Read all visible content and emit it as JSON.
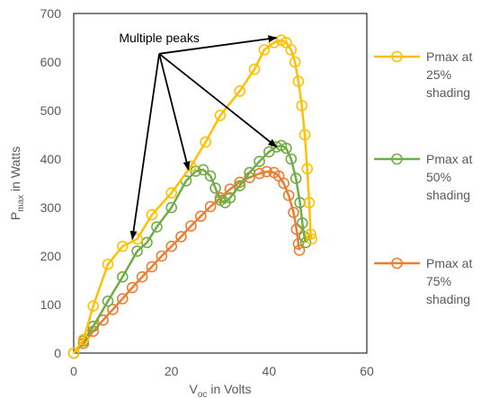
{
  "chart_data": {
    "type": "scatter",
    "xlim": [
      0,
      60
    ],
    "ylim": [
      0,
      700
    ],
    "xticks": [
      0,
      20,
      40,
      60
    ],
    "yticks": [
      0,
      100,
      200,
      300,
      400,
      500,
      600,
      700
    ],
    "xlabel": {
      "main": "V",
      "sub": "oc",
      "rest": " in Volts"
    },
    "ylabel": {
      "main": "P",
      "sub": "max",
      "rest": " in Watts"
    },
    "grid": false,
    "legend_position": "right",
    "annotation": {
      "text": "Multiple peaks",
      "arrow_from": [
        17.5,
        617
      ],
      "arrow_targets": [
        [
          12,
          235
        ],
        [
          23.5,
          378
        ],
        [
          41.5,
          650
        ],
        [
          41.5,
          425
        ]
      ]
    },
    "series": [
      {
        "name": "Pmax at 25% shading",
        "legend_lines": [
          "Pmax at",
          "25%",
          "shading"
        ],
        "color": "#FFC000",
        "points": [
          [
            0,
            0
          ],
          [
            2,
            28
          ],
          [
            4,
            97
          ],
          [
            7,
            183
          ],
          [
            10,
            220
          ],
          [
            13,
            235
          ],
          [
            16,
            285
          ],
          [
            20,
            330
          ],
          [
            24,
            385
          ],
          [
            27,
            435
          ],
          [
            30,
            490
          ],
          [
            34,
            540
          ],
          [
            37,
            585
          ],
          [
            39,
            625
          ],
          [
            41,
            640
          ],
          [
            42.5,
            645
          ],
          [
            43.5,
            640
          ],
          [
            44.5,
            625
          ],
          [
            45.3,
            600
          ],
          [
            46,
            560
          ],
          [
            46.7,
            510
          ],
          [
            47.3,
            450
          ],
          [
            47.8,
            380
          ],
          [
            48.2,
            310
          ],
          [
            48.5,
            245
          ],
          [
            48.7,
            235
          ]
        ]
      },
      {
        "name": "Pmax at 50% shading",
        "legend_lines": [
          "Pmax at",
          "50%",
          "shading"
        ],
        "color": "#70AD47",
        "points": [
          [
            0,
            0
          ],
          [
            2,
            25
          ],
          [
            4,
            55
          ],
          [
            7,
            107
          ],
          [
            10,
            157
          ],
          [
            13,
            210
          ],
          [
            15,
            228
          ],
          [
            17,
            260
          ],
          [
            20,
            300
          ],
          [
            23,
            355
          ],
          [
            25,
            375
          ],
          [
            26.5,
            378
          ],
          [
            28,
            365
          ],
          [
            29,
            340
          ],
          [
            30,
            315
          ],
          [
            31,
            310
          ],
          [
            32,
            320
          ],
          [
            34,
            345
          ],
          [
            36,
            372
          ],
          [
            38,
            395
          ],
          [
            40,
            415
          ],
          [
            41.5,
            425
          ],
          [
            42.5,
            428
          ],
          [
            43.5,
            422
          ],
          [
            44.5,
            400
          ],
          [
            45.5,
            360
          ],
          [
            46.3,
            310
          ],
          [
            46.8,
            268
          ],
          [
            47.2,
            240
          ],
          [
            47.5,
            228
          ]
        ]
      },
      {
        "name": "Pmax at 75% shading",
        "legend_lines": [
          "Pmax at",
          "75%",
          "shading"
        ],
        "color": "#ED7D31",
        "points": [
          [
            0,
            0
          ],
          [
            2,
            20
          ],
          [
            4,
            45
          ],
          [
            6,
            68
          ],
          [
            8,
            90
          ],
          [
            10,
            112
          ],
          [
            12,
            135
          ],
          [
            14,
            157
          ],
          [
            16,
            178
          ],
          [
            18,
            200
          ],
          [
            20,
            220
          ],
          [
            22,
            240
          ],
          [
            24,
            262
          ],
          [
            26,
            282
          ],
          [
            28,
            302
          ],
          [
            30,
            320
          ],
          [
            32,
            338
          ],
          [
            34,
            352
          ],
          [
            36,
            362
          ],
          [
            38,
            370
          ],
          [
            39.5,
            374
          ],
          [
            41,
            372
          ],
          [
            42,
            365
          ],
          [
            43,
            350
          ],
          [
            44,
            325
          ],
          [
            45,
            290
          ],
          [
            45.6,
            255
          ],
          [
            46,
            225
          ],
          [
            46.2,
            212
          ]
        ]
      }
    ]
  }
}
